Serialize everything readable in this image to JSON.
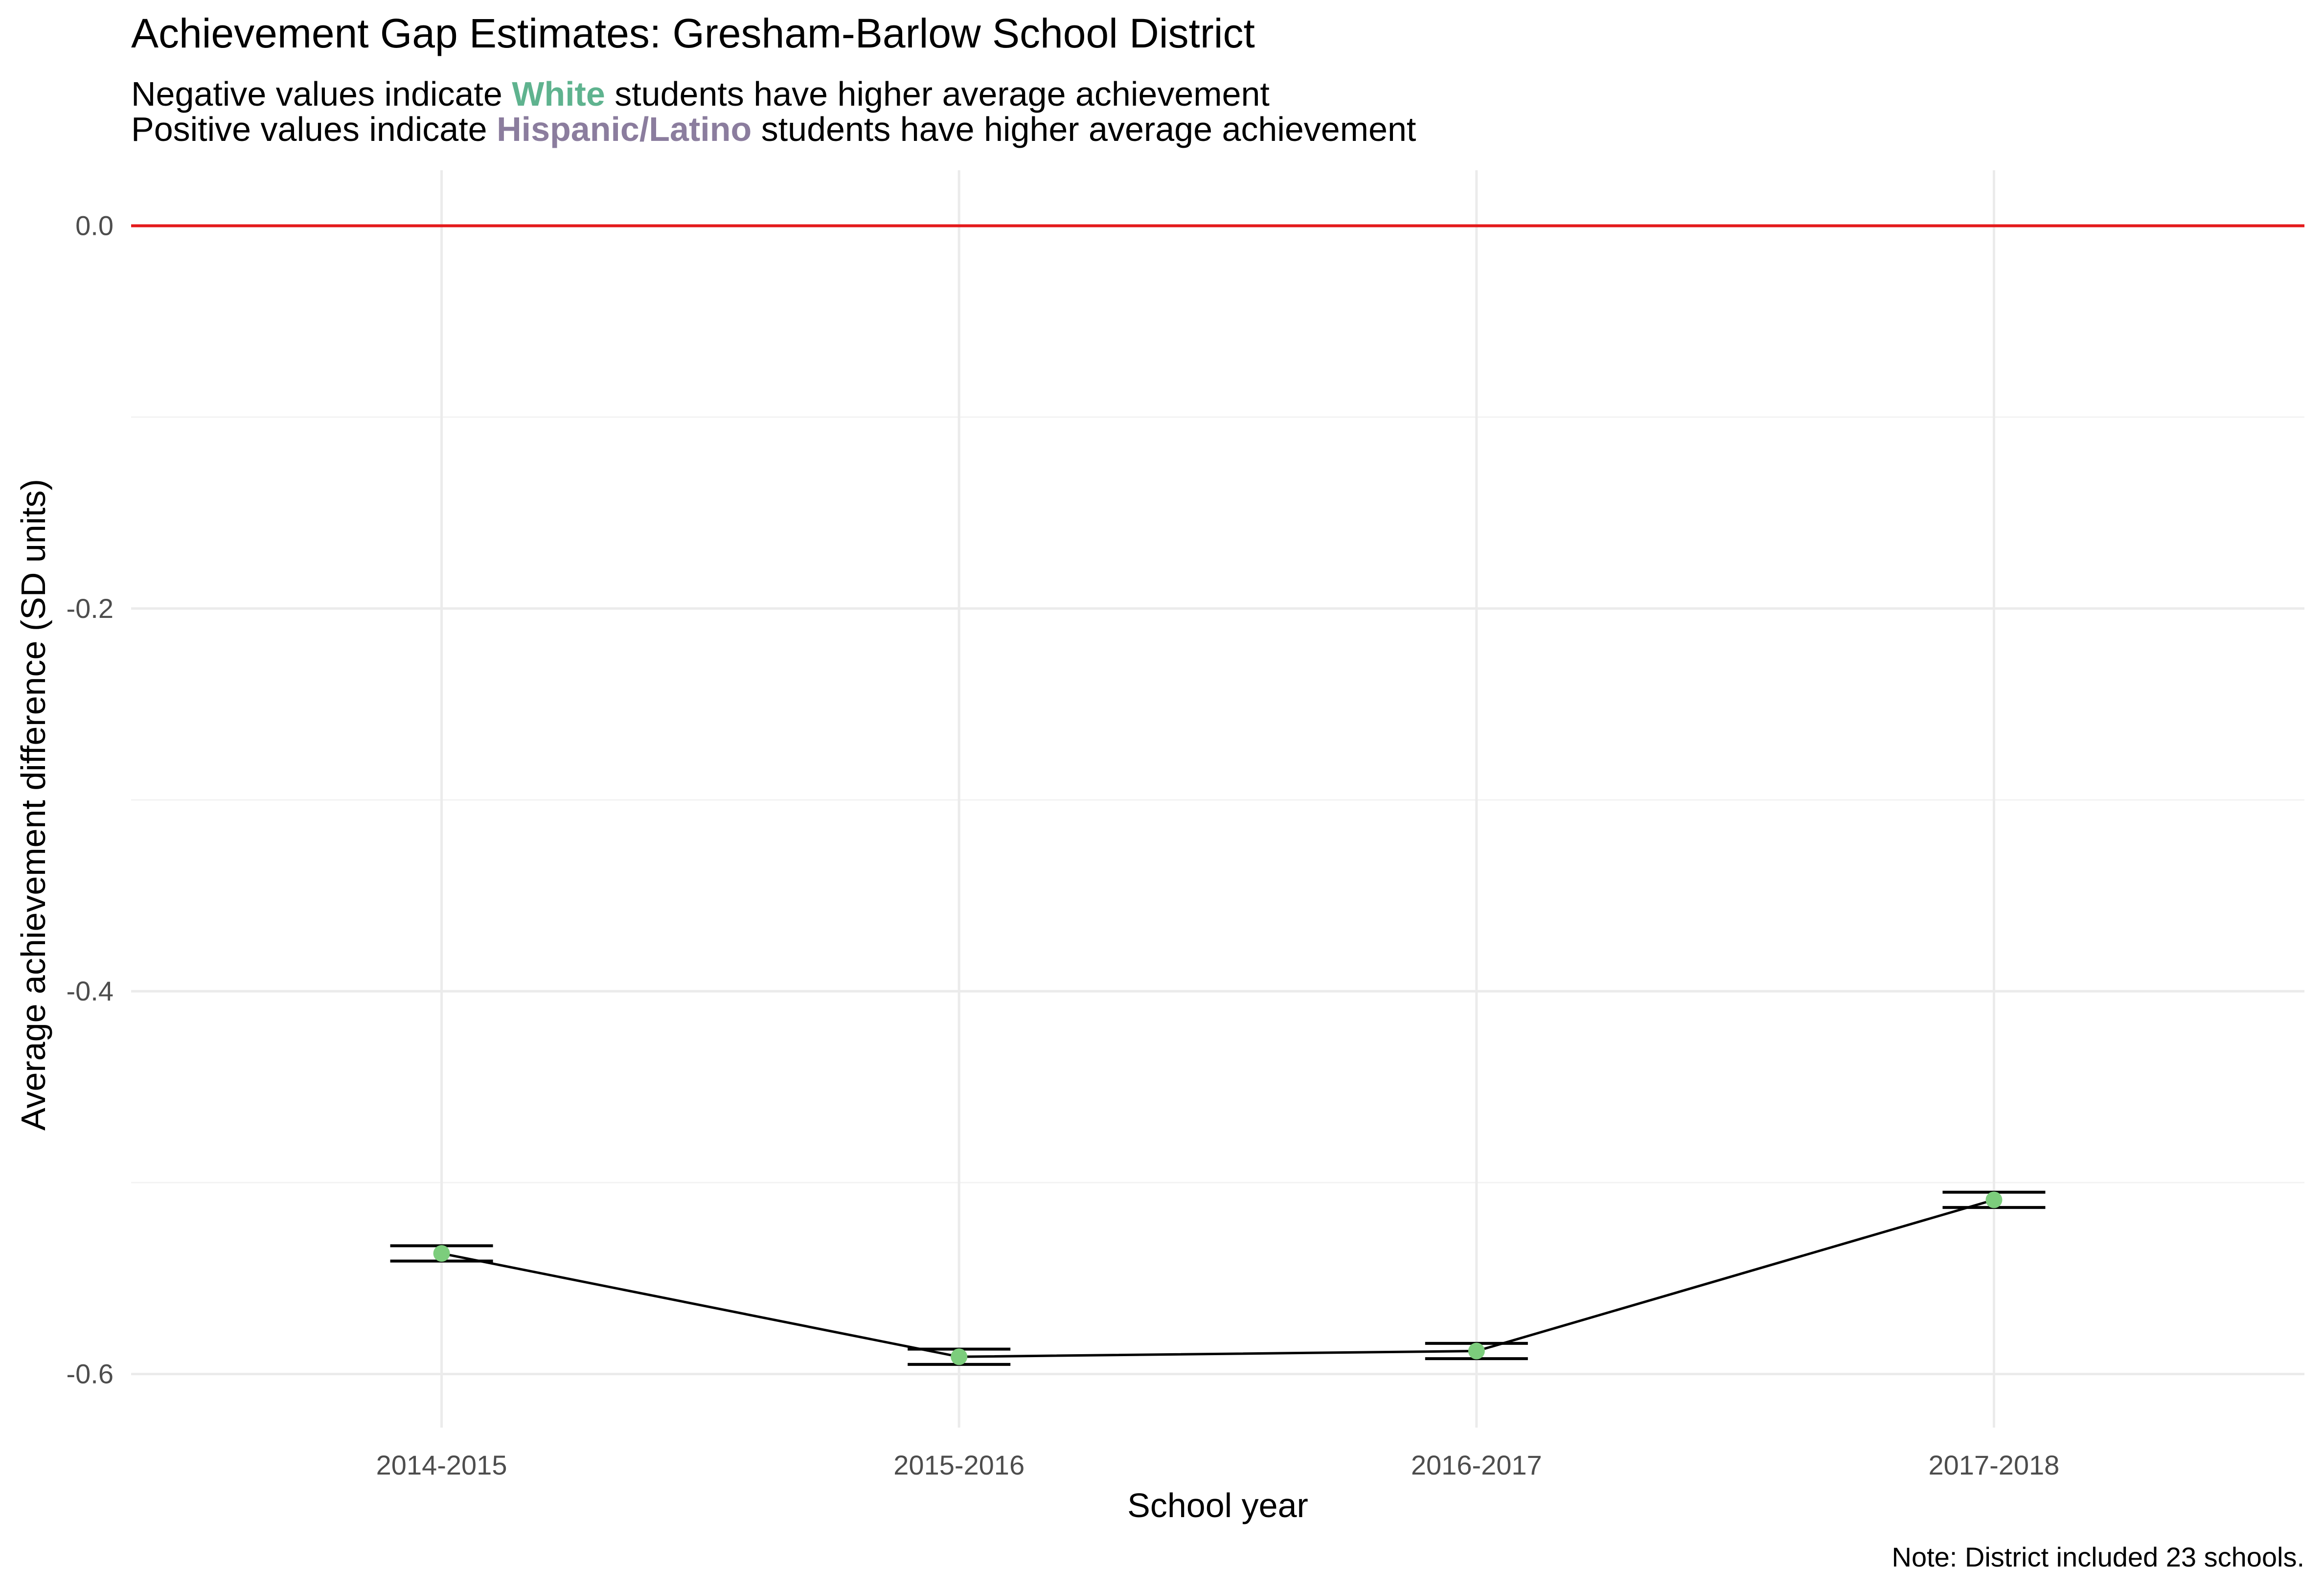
{
  "chart_data": {
    "type": "line",
    "title": "Achievement Gap Estimates: Gresham-Barlow School District",
    "subtitle": [
      {
        "before": "Negative values indicate ",
        "highlight": "White",
        "after": " students have higher average achievement"
      },
      {
        "before": "Positive values indicate ",
        "highlight": "Hispanic/Latino",
        "after": " students have higher average achievement"
      }
    ],
    "xlabel": "School year",
    "ylabel": "Average achievement difference (SD units)",
    "caption": "Note: District included 23 schools.",
    "categories": [
      "2014-2015",
      "2015-2016",
      "2016-2017",
      "2017-2018"
    ],
    "values": [
      -0.537,
      -0.591,
      -0.588,
      -0.509
    ],
    "error_low": [
      -0.541,
      -0.595,
      -0.592,
      -0.513
    ],
    "error_high": [
      -0.533,
      -0.587,
      -0.584,
      -0.505
    ],
    "reference_line": 0,
    "ylim": [
      -0.628,
      0.029
    ],
    "y_ticks": [
      0.0,
      -0.2,
      -0.4,
      -0.6
    ],
    "y_tick_labels": [
      "0.0",
      "-0.2",
      "-0.4",
      "-0.6"
    ],
    "grid": true,
    "colors": {
      "white_highlight": "#5fb38f",
      "hispanic_highlight": "#8b7d9e",
      "point": "#7ccd7c",
      "line": "#000000",
      "reference_line": "#e41a1c",
      "grid": "#ebebeb"
    }
  }
}
